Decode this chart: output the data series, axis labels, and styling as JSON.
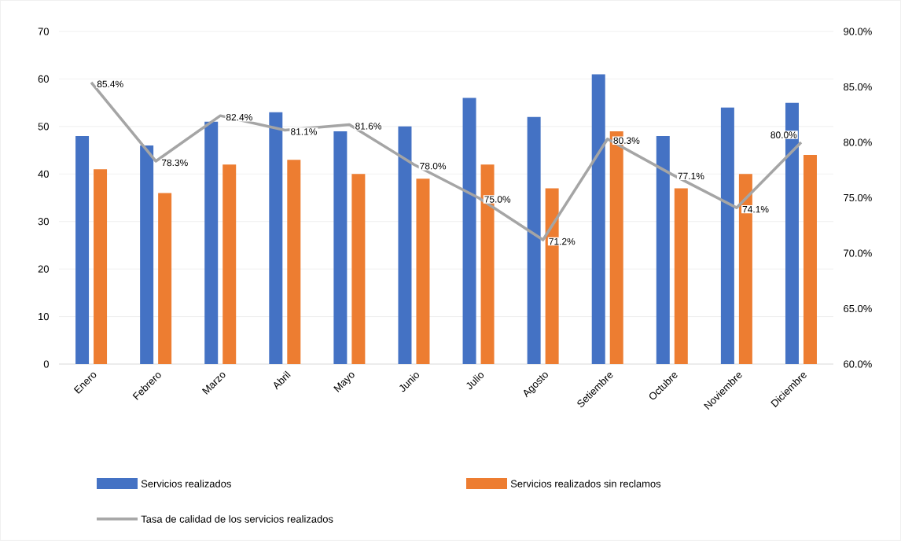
{
  "chart_data": {
    "type": "bar",
    "categories": [
      "Enero",
      "Febrero",
      "Marzo",
      "Abril",
      "Mayo",
      "Junio",
      "Julio",
      "Agosto",
      "Setiembre",
      "Octubre",
      "Noviembre",
      "Diciembre"
    ],
    "series": [
      {
        "name": "Servicios realizados",
        "color": "#4472c4",
        "values": [
          48,
          46,
          51,
          53,
          49,
          50,
          56,
          52,
          61,
          48,
          54,
          55
        ]
      },
      {
        "name": "Servicios realizados sin reclamos",
        "color": "#ed7d31",
        "values": [
          41,
          36,
          42,
          43,
          40,
          39,
          42,
          37,
          49,
          37,
          40,
          44
        ]
      },
      {
        "name": "Tasa de calidad de los servicios realizados",
        "type": "line",
        "axis": "y2",
        "color": "#a5a5a5",
        "marker": "none",
        "line_style": "solid",
        "values": [
          85.4,
          78.3,
          82.4,
          81.1,
          81.6,
          78.0,
          75.0,
          71.2,
          80.3,
          77.1,
          74.1,
          80.0
        ],
        "value_labels": [
          "85.4%",
          "78.3%",
          "82.4%",
          "81.1%",
          "81.6%",
          "78.0%",
          "75.0%",
          "71.2%",
          "80.3%",
          "77.1%",
          "74.1%",
          "80.0%"
        ]
      }
    ],
    "ylim": [
      0,
      70
    ],
    "yticks": [
      0,
      10,
      20,
      30,
      40,
      50,
      60,
      70
    ],
    "y2lim": [
      60,
      90
    ],
    "y2ticks": [
      {
        "value": 60,
        "label": "60.0%"
      },
      {
        "value": 65,
        "label": "65.0%"
      },
      {
        "value": 70,
        "label": "70.0%"
      },
      {
        "value": 75,
        "label": "75.0%"
      },
      {
        "value": 80,
        "label": "80.0%"
      },
      {
        "value": 85,
        "label": "85.0%"
      },
      {
        "value": 90,
        "label": "90.0%"
      }
    ],
    "grid": "y",
    "legend": "bottom"
  }
}
